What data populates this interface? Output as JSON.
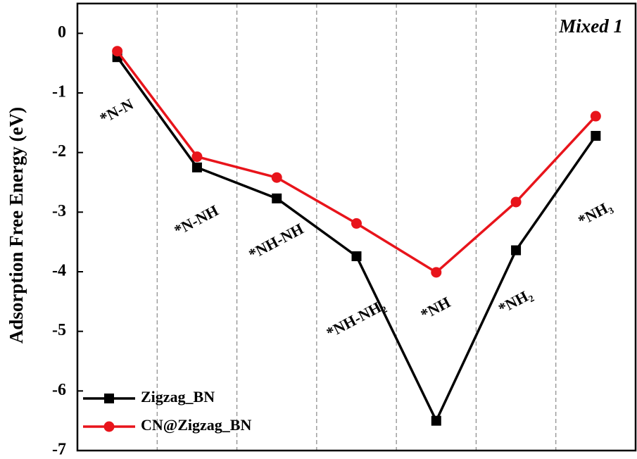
{
  "chart_data": {
    "type": "line",
    "y_label": "Adsorption Free Energy (eV)",
    "annotation": "Mixed 1",
    "categories": [
      "*N-N",
      "*N-NH",
      "*NH-NH",
      "*NH-NH₂",
      "*NH",
      "*NH₂",
      "*NH₃"
    ],
    "series": [
      {
        "name": "Zigzag_BN",
        "color": "#000000",
        "marker": "square",
        "values": [
          -0.4,
          -2.25,
          -2.77,
          -3.74,
          -6.5,
          -3.64,
          -1.72
        ]
      },
      {
        "name": "CN@Zigzag_BN",
        "color": "#e8141b",
        "marker": "circle",
        "values": [
          -0.3,
          -2.07,
          -2.42,
          -3.19,
          -4.01,
          -2.83,
          -1.39
        ]
      }
    ],
    "ylim": [
      -7,
      0.5
    ],
    "yticks": [
      0,
      -1,
      -2,
      -3,
      -4,
      -5,
      -6,
      -7
    ],
    "separators": true,
    "legend": "lower left"
  }
}
